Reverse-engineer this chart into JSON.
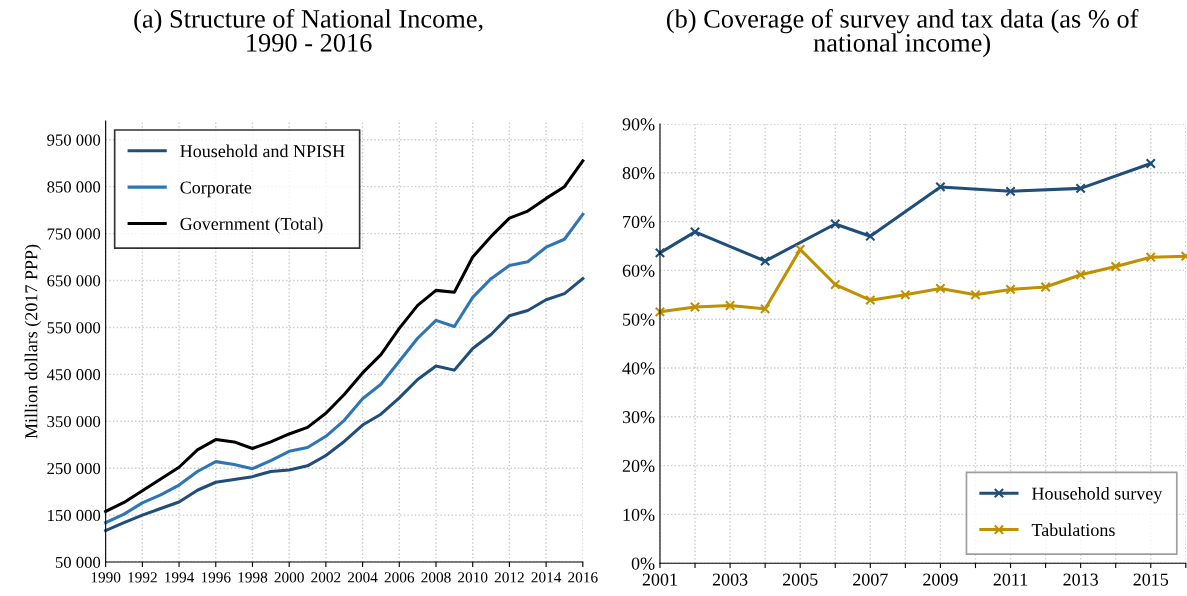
{
  "chart_data": [
    {
      "type": "line",
      "title": "(a) Structure of National Income,\n1990 - 2016",
      "ylabel": "Million dollars (2017 PPP)",
      "x": [
        1990,
        1991,
        1992,
        1993,
        1994,
        1995,
        1996,
        1997,
        1998,
        1999,
        2000,
        2001,
        2002,
        2003,
        2004,
        2005,
        2006,
        2007,
        2008,
        2009,
        2010,
        2011,
        2012,
        2013,
        2014,
        2015,
        2016
      ],
      "series": [
        {
          "name": "Household and NPISH",
          "color": "#1f4e79",
          "values": [
            117000,
            134000,
            150000,
            164000,
            178000,
            203000,
            220000,
            226000,
            232000,
            243000,
            246000,
            255000,
            277000,
            307000,
            342000,
            365000,
            400000,
            439000,
            468000,
            459000,
            505000,
            535000,
            575000,
            586000,
            609000,
            622000,
            654000
          ]
        },
        {
          "name": "Corporate",
          "color": "#2e75b6",
          "values": [
            134000,
            152000,
            176000,
            193000,
            214000,
            243000,
            264000,
            258000,
            249000,
            266000,
            286000,
            294000,
            318000,
            352000,
            398000,
            429000,
            478000,
            527000,
            565000,
            552000,
            614000,
            654000,
            682000,
            690000,
            721000,
            738000,
            791000
          ]
        },
        {
          "name": "Government (Total)",
          "color": "#000000",
          "values": [
            158000,
            177000,
            202000,
            227000,
            252000,
            289000,
            311000,
            306000,
            292000,
            306000,
            323000,
            337000,
            367000,
            407000,
            453000,
            492000,
            548000,
            597000,
            629000,
            625000,
            700000,
            744000,
            783000,
            798000,
            825000,
            850000,
            905000
          ]
        }
      ],
      "xlim": [
        1990,
        2016
      ],
      "xticks": [
        1990,
        1992,
        1994,
        1996,
        1998,
        2000,
        2002,
        2004,
        2006,
        2008,
        2010,
        2012,
        2014,
        2016
      ],
      "ylim": [
        50000,
        990000
      ],
      "yticks": [
        {
          "value": 50000,
          "label": "50 000"
        },
        {
          "value": 150000,
          "label": "150 000"
        },
        {
          "value": 250000,
          "label": "250 000"
        },
        {
          "value": 350000,
          "label": "350 000"
        },
        {
          "value": 450000,
          "label": "450 000"
        },
        {
          "value": 550000,
          "label": "550 000"
        },
        {
          "value": 650000,
          "label": "650 000"
        },
        {
          "value": 750000,
          "label": "750 000"
        },
        {
          "value": 850000,
          "label": "850 000"
        },
        {
          "value": 950000,
          "label": "950 000"
        }
      ],
      "grid": true,
      "legend": "top left",
      "marker": "none",
      "line_style": "solid"
    },
    {
      "type": "line",
      "title": "(b) Coverage of survey and tax data (as % of\nnational income)",
      "series": [
        {
          "name": "Household survey",
          "color": "#1f4e79",
          "x": [
            2001,
            2002,
            2004,
            2006,
            2007,
            2009,
            2011,
            2013,
            2015
          ],
          "values": [
            63.6,
            67.9,
            61.9,
            69.5,
            67.0,
            77.1,
            76.2,
            76.8,
            81.9
          ]
        },
        {
          "name": "Tabulations",
          "color": "#bf9000",
          "x": [
            2001,
            2002,
            2003,
            2004,
            2005,
            2006,
            2007,
            2008,
            2009,
            2010,
            2011,
            2012,
            2013,
            2014,
            2015,
            2016
          ],
          "values": [
            51.5,
            52.5,
            52.8,
            52.1,
            64.3,
            57.1,
            53.9,
            55.0,
            56.3,
            55.0,
            56.1,
            56.6,
            59.1,
            60.8,
            62.7,
            62.9
          ]
        }
      ],
      "xlim": [
        2001,
        2016
      ],
      "xticks": [
        2001,
        {
          "value": 2002,
          "label": null
        },
        2003,
        {
          "value": 2004,
          "label": null
        },
        2005,
        {
          "value": 2006,
          "label": null
        },
        2007,
        {
          "value": 2008,
          "label": null
        },
        2009,
        {
          "value": 2010,
          "label": null
        },
        2011,
        {
          "value": 2012,
          "label": null
        },
        2013,
        {
          "value": 2014,
          "label": null
        },
        2015,
        {
          "value": 2016,
          "label": null
        }
      ],
      "ylim": [
        0,
        90
      ],
      "yticks": [
        {
          "value": 0,
          "label": "0%"
        },
        {
          "value": 10,
          "label": "10%"
        },
        {
          "value": 20,
          "label": "20%"
        },
        {
          "value": 30,
          "label": "30%"
        },
        {
          "value": 40,
          "label": "40%"
        },
        {
          "value": 50,
          "label": "50%"
        },
        {
          "value": 60,
          "label": "60%"
        },
        {
          "value": 70,
          "label": "70%"
        },
        {
          "value": 80,
          "label": "80%"
        },
        {
          "value": 90,
          "label": "90%"
        }
      ],
      "grid": true,
      "legend": "bottom right",
      "marker": "cross",
      "line_style": "solid"
    }
  ]
}
